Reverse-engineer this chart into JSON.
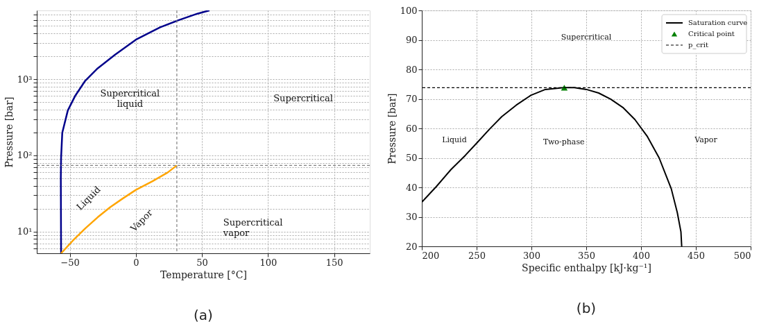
{
  "chart_data": [
    {
      "type": "line",
      "xlabel": "Temperature [°C]",
      "ylabel": "Pressure [bar]",
      "log": "y",
      "grid": true,
      "xlim": [
        -75,
        177
      ],
      "xticks": [
        -50,
        0,
        50,
        100,
        150
      ],
      "ylim": [
        5.18,
        8000
      ],
      "yticks": [
        {
          "value": 6,
          "label": null
        },
        {
          "value": 7,
          "label": null
        },
        {
          "value": 8,
          "label": null
        },
        {
          "value": 9,
          "label": null
        },
        {
          "value": 10,
          "label": "10¹"
        },
        {
          "value": 20,
          "label": null
        },
        {
          "value": 30,
          "label": null
        },
        {
          "value": 40,
          "label": null
        },
        {
          "value": 50,
          "label": null
        },
        {
          "value": 60,
          "label": null
        },
        {
          "value": 70,
          "label": null
        },
        {
          "value": 80,
          "label": null
        },
        {
          "value": 90,
          "label": null
        },
        {
          "value": 100,
          "label": "10²"
        },
        {
          "value": 200,
          "label": null
        },
        {
          "value": 300,
          "label": null
        },
        {
          "value": 400,
          "label": null
        },
        {
          "value": 500,
          "label": null
        },
        {
          "value": 600,
          "label": null
        },
        {
          "value": 700,
          "label": null
        },
        {
          "value": 800,
          "label": null
        },
        {
          "value": 900,
          "label": null
        },
        {
          "value": 1000,
          "label": "10³"
        },
        {
          "value": 2000,
          "label": null
        },
        {
          "value": 3000,
          "label": null
        },
        {
          "value": 4000,
          "label": null
        },
        {
          "value": 5000,
          "label": null
        },
        {
          "value": 6000,
          "label": null
        },
        {
          "value": 7000,
          "label": null
        }
      ],
      "series": [
        {
          "color": "#00008b",
          "x": [
            -56.6,
            -56.8,
            -56.6,
            -55.7,
            -51.5,
            -45.8,
            -38.3,
            -28.9,
            -15.7,
            0,
            18.3,
            31.5,
            46.6,
            55.7
          ],
          "values": [
            5.18,
            51,
            93,
            198,
            389,
            610,
            955,
            1390,
            2100,
            3300,
            4790,
            5890,
            7250,
            8000
          ]
        },
        {
          "color": "#ffa500",
          "x": [
            -56.6,
            -47.7,
            -38.3,
            -28.9,
            -19.4,
            -10,
            0,
            12.6,
            24,
            31
          ],
          "values": [
            5.18,
            7.6,
            11,
            15.4,
            20.9,
            27.1,
            35.2,
            45.8,
            59.5,
            73.8
          ]
        }
      ],
      "ref_lines": [
        {
          "axis": "x",
          "value": 31,
          "color": "#808080",
          "line_style": "dashed"
        },
        {
          "axis": "y",
          "value": 73.8,
          "color": "#808080",
          "line_style": "dashed"
        }
      ],
      "annotations": [
        "Supercritical\nliquid",
        "Supercritical",
        "Supercritical\nvapor",
        "Liquid",
        "Vapor",
        "(a)"
      ]
    },
    {
      "type": "line",
      "xlabel": "Specific enthalpy [kJ·kg⁻¹]",
      "ylabel": "Pressure [bar]",
      "grid": true,
      "legend": "top right",
      "xlim": [
        200,
        500
      ],
      "xticks": [
        200,
        250,
        300,
        350,
        400,
        450,
        500
      ],
      "ylim": [
        20,
        100
      ],
      "yticks": [
        20,
        30,
        40,
        50,
        60,
        70,
        80,
        90,
        100
      ],
      "series": [
        {
          "name": "Saturation curve",
          "color": "#000000",
          "x": [
            200,
            213.3,
            226.5,
            239.8,
            250.8,
            261.9,
            273,
            286.2,
            299.4,
            312.7,
            329.3,
            339.2,
            350.2,
            361.3,
            372.3,
            383.4,
            394.4,
            405.5,
            416.5,
            427.6,
            433.1,
            436.4,
            437.1
          ],
          "values": [
            35.0,
            40.3,
            46.0,
            50.9,
            55.3,
            59.8,
            64.0,
            67.9,
            71.2,
            73.2,
            73.8,
            73.8,
            73.2,
            72.0,
            69.9,
            67.1,
            63.0,
            57.4,
            50.0,
            39.5,
            31.4,
            24.9,
            20.0
          ]
        },
        {
          "name": "Critical point",
          "type": "scatter",
          "marker": "triangle",
          "color": "#008000",
          "x": [
            330
          ],
          "values": [
            73.8
          ]
        }
      ],
      "ref_lines": [
        {
          "axis": "y",
          "value": 73.8,
          "label": "p_crit",
          "color": "#000000",
          "line_style": "dashed"
        }
      ],
      "annotations": [
        "Supercritical",
        "Liquid",
        "Two-phase",
        "Vapor",
        "(b)"
      ]
    }
  ]
}
